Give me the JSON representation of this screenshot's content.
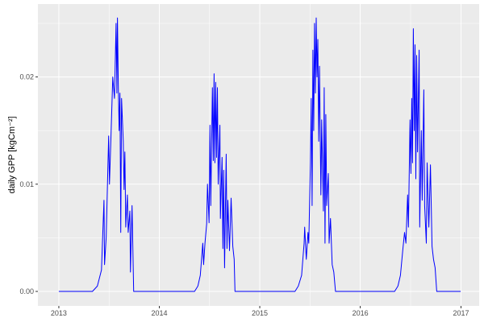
{
  "chart_data": {
    "type": "line",
    "title": "",
    "xlabel": "",
    "ylabel": "daily GPP [kgCm⁻²]",
    "xlim": [
      "2012-10-17",
      "2017-03-08"
    ],
    "ylim": [
      -0.00135,
      0.0268
    ],
    "x_ticks": [
      "2013",
      "2014",
      "2015",
      "2016",
      "2017"
    ],
    "y_ticks": [
      {
        "value": 0,
        "label": "0.00"
      },
      {
        "value": 0.01,
        "label": "0.01"
      },
      {
        "value": 0.02,
        "label": "0.02"
      }
    ],
    "grid": true,
    "line_color": "#0000ff",
    "panel_color": "#ebebeb",
    "series": [
      {
        "points": [
          [
            "2013-01-01",
            0
          ],
          [
            "2013-05-03",
            0
          ],
          [
            "2013-05-21",
            0.0005
          ],
          [
            "2013-06-05",
            0.002
          ],
          [
            "2013-06-14",
            0.0085
          ],
          [
            "2013-06-16",
            0.0025
          ],
          [
            "2013-06-22",
            0.005
          ],
          [
            "2013-07-01",
            0.0145
          ],
          [
            "2013-07-04",
            0.01
          ],
          [
            "2013-07-10",
            0.015
          ],
          [
            "2013-07-16",
            0.02
          ],
          [
            "2013-07-22",
            0.018
          ],
          [
            "2013-07-28",
            0.025
          ],
          [
            "2013-07-31",
            0.0185
          ],
          [
            "2013-08-02",
            0.0255
          ],
          [
            "2013-08-05",
            0.0195
          ],
          [
            "2013-08-08",
            0.015
          ],
          [
            "2013-08-11",
            0.0185
          ],
          [
            "2013-08-14",
            0.0055
          ],
          [
            "2013-08-17",
            0.018
          ],
          [
            "2013-08-23",
            0.014
          ],
          [
            "2013-08-26",
            0.0095
          ],
          [
            "2013-08-29",
            0.013
          ],
          [
            "2013-09-01",
            0.006
          ],
          [
            "2013-09-07",
            0.009
          ],
          [
            "2013-09-10",
            0.0055
          ],
          [
            "2013-09-16",
            0.0075
          ],
          [
            "2013-09-18",
            0.0018
          ],
          [
            "2013-09-24",
            0.008
          ],
          [
            "2013-09-27",
            0.004
          ],
          [
            "2013-09-30",
            0
          ],
          [
            "2014-05-09",
            0
          ],
          [
            "2014-05-21",
            0.0005
          ],
          [
            "2014-05-30",
            0.0015
          ],
          [
            "2014-06-08",
            0.0045
          ],
          [
            "2014-06-11",
            0.0025
          ],
          [
            "2014-06-16",
            0.0045
          ],
          [
            "2014-06-22",
            0.0063
          ],
          [
            "2014-06-25",
            0.01
          ],
          [
            "2014-07-01",
            0.0064
          ],
          [
            "2014-07-04",
            0.0155
          ],
          [
            "2014-07-07",
            0.008
          ],
          [
            "2014-07-13",
            0.019
          ],
          [
            "2014-07-16",
            0.0122
          ],
          [
            "2014-07-19",
            0.0203
          ],
          [
            "2014-07-22",
            0.012
          ],
          [
            "2014-07-25",
            0.0195
          ],
          [
            "2014-07-28",
            0.0125
          ],
          [
            "2014-07-31",
            0.019
          ],
          [
            "2014-08-03",
            0.01
          ],
          [
            "2014-08-09",
            0.0155
          ],
          [
            "2014-08-11",
            0.0068
          ],
          [
            "2014-08-17",
            0.0125
          ],
          [
            "2014-08-20",
            0.004
          ],
          [
            "2014-08-23",
            0.0113
          ],
          [
            "2014-08-26",
            0.0022
          ],
          [
            "2014-09-01",
            0.0128
          ],
          [
            "2014-09-04",
            0.004
          ],
          [
            "2014-09-07",
            0.0085
          ],
          [
            "2014-09-13",
            0.0038
          ],
          [
            "2014-09-19",
            0.0087
          ],
          [
            "2014-09-25",
            0.0042
          ],
          [
            "2014-09-30",
            0.003
          ],
          [
            "2014-10-03",
            0
          ],
          [
            "2015-05-09",
            0
          ],
          [
            "2015-05-21",
            0.0005
          ],
          [
            "2015-06-02",
            0.0015
          ],
          [
            "2015-06-11",
            0.0045
          ],
          [
            "2015-06-13",
            0.006
          ],
          [
            "2015-06-19",
            0.003
          ],
          [
            "2015-06-25",
            0.0055
          ],
          [
            "2015-06-28",
            0.0045
          ],
          [
            "2015-07-04",
            0.012
          ],
          [
            "2015-07-07",
            0.018
          ],
          [
            "2015-07-10",
            0.008
          ],
          [
            "2015-07-13",
            0.0225
          ],
          [
            "2015-07-16",
            0.015
          ],
          [
            "2015-07-19",
            0.025
          ],
          [
            "2015-07-22",
            0.0185
          ],
          [
            "2015-07-25",
            0.0255
          ],
          [
            "2015-07-28",
            0.02
          ],
          [
            "2015-07-31",
            0.0235
          ],
          [
            "2015-08-03",
            0.014
          ],
          [
            "2015-08-06",
            0.021
          ],
          [
            "2015-08-11",
            0.009
          ],
          [
            "2015-08-14",
            0.016
          ],
          [
            "2015-08-20",
            0.0075
          ],
          [
            "2015-08-23",
            0.019
          ],
          [
            "2015-08-26",
            0.0045
          ],
          [
            "2015-08-29",
            0.0165
          ],
          [
            "2015-09-01",
            0.008
          ],
          [
            "2015-09-07",
            0.011
          ],
          [
            "2015-09-10",
            0.0045
          ],
          [
            "2015-09-15",
            0.0068
          ],
          [
            "2015-09-21",
            0.0025
          ],
          [
            "2015-09-27",
            0.0018
          ],
          [
            "2015-10-03",
            0
          ],
          [
            "2016-05-05",
            0
          ],
          [
            "2016-05-17",
            0.0005
          ],
          [
            "2016-05-26",
            0.0015
          ],
          [
            "2016-06-04",
            0.004
          ],
          [
            "2016-06-10",
            0.0055
          ],
          [
            "2016-06-15",
            0.0045
          ],
          [
            "2016-06-21",
            0.009
          ],
          [
            "2016-06-24",
            0.006
          ],
          [
            "2016-06-30",
            0.016
          ],
          [
            "2016-07-03",
            0.011
          ],
          [
            "2016-07-06",
            0.018
          ],
          [
            "2016-07-09",
            0.012
          ],
          [
            "2016-07-12",
            0.0245
          ],
          [
            "2016-07-15",
            0.015
          ],
          [
            "2016-07-18",
            0.023
          ],
          [
            "2016-07-21",
            0.0105
          ],
          [
            "2016-07-24",
            0.022
          ],
          [
            "2016-07-27",
            0.013
          ],
          [
            "2016-08-02",
            0.0225
          ],
          [
            "2016-08-04",
            0.006
          ],
          [
            "2016-08-10",
            0.015
          ],
          [
            "2016-08-13",
            0.0085
          ],
          [
            "2016-08-19",
            0.0188
          ],
          [
            "2016-08-22",
            0.008
          ],
          [
            "2016-08-28",
            0.0045
          ],
          [
            "2016-08-31",
            0.012
          ],
          [
            "2016-09-06",
            0.006
          ],
          [
            "2016-09-12",
            0.0118
          ],
          [
            "2016-09-18",
            0.0042
          ],
          [
            "2016-09-23",
            0.003
          ],
          [
            "2016-09-29",
            0.0022
          ],
          [
            "2016-10-05",
            0
          ],
          [
            "2016-12-31",
            0
          ]
        ]
      }
    ]
  }
}
